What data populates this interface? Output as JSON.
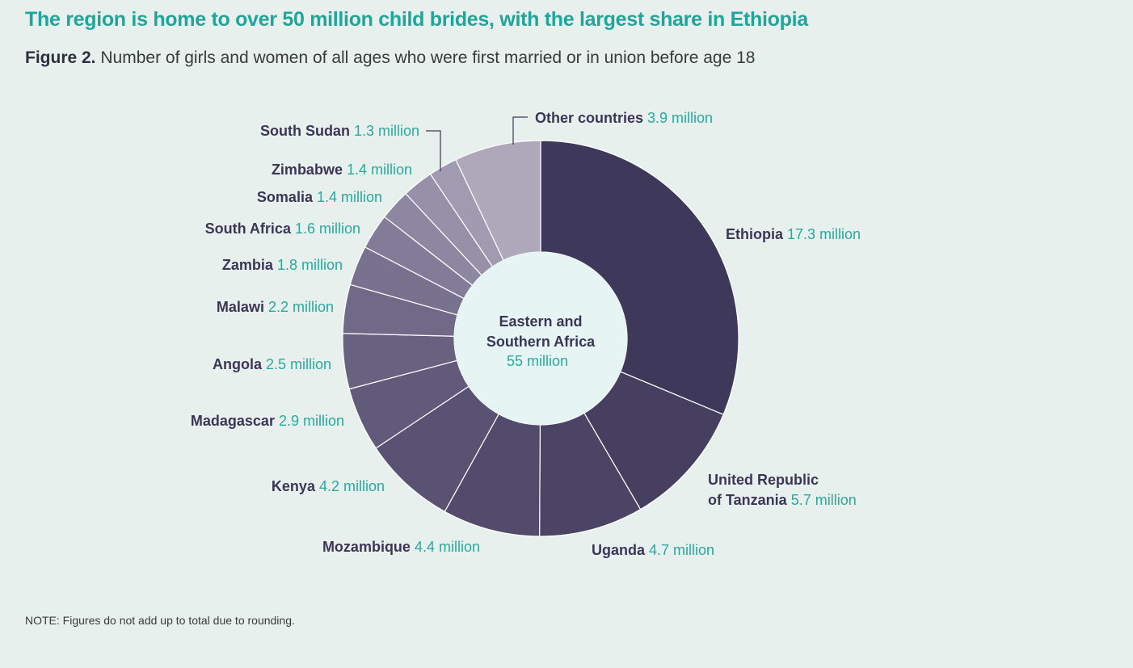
{
  "headline": "The region is home to over 50 million child brides, with the largest share in Ethiopia",
  "subtitle": {
    "figure_label": "Figure 2.",
    "text": "Number of girls and women of all ages who were first married or in union before age 18"
  },
  "note": "NOTE: Figures do not add up to total due to rounding.",
  "colors": {
    "background": "#e8f0ee",
    "headline": "#1fa59a",
    "value_text": "#27aa9d",
    "label_text": "#3b3656",
    "center_fill": "#e6f5f3",
    "slice_border": "#ffffff"
  },
  "chart_data": {
    "type": "pie",
    "variant": "donut",
    "title": "Number of girls and women of all ages who were first married or in union before age 18",
    "center_label": "Eastern and Southern Africa",
    "center_label_lines": [
      "Eastern and",
      "Southern Africa"
    ],
    "center_value": "55 million",
    "unit": "million",
    "slices": [
      {
        "name": "Ethiopia",
        "value": 17.3,
        "value_label": "17.3 million",
        "color": "#3e385a"
      },
      {
        "name": "United Republic of Tanzania",
        "name_lines": [
          "United Republic",
          "of Tanzania"
        ],
        "value": 5.7,
        "value_label": "5.7 million",
        "color": "#463f60"
      },
      {
        "name": "Uganda",
        "value": 4.7,
        "value_label": "4.7 million",
        "color": "#4b4465"
      },
      {
        "name": "Mozambique",
        "value": 4.4,
        "value_label": "4.4 million",
        "color": "#534b6c"
      },
      {
        "name": "Kenya",
        "value": 4.2,
        "value_label": "4.2 million",
        "color": "#5a5273"
      },
      {
        "name": "Madagascar",
        "value": 2.9,
        "value_label": "2.9 million",
        "color": "#615a7a"
      },
      {
        "name": "Angola",
        "value": 2.5,
        "value_label": "2.5 million",
        "color": "#686180"
      },
      {
        "name": "Malawi",
        "value": 2.2,
        "value_label": "2.2 million",
        "color": "#706987"
      },
      {
        "name": "Zambia",
        "value": 1.8,
        "value_label": "1.8 million",
        "color": "#79728f"
      },
      {
        "name": "South Africa",
        "value": 1.6,
        "value_label": "1.6 million",
        "color": "#837c98"
      },
      {
        "name": "Somalia",
        "value": 1.4,
        "value_label": "1.4 million",
        "color": "#8d87a1"
      },
      {
        "name": "Zimbabwe",
        "value": 1.4,
        "value_label": "1.4 million",
        "color": "#9690a9"
      },
      {
        "name": "South Sudan",
        "value": 1.3,
        "value_label": "1.3 million",
        "color": "#a09bb1"
      },
      {
        "name": "Other countries",
        "value": 3.9,
        "value_label": "3.9 million",
        "color": "#aea8ba"
      }
    ]
  }
}
